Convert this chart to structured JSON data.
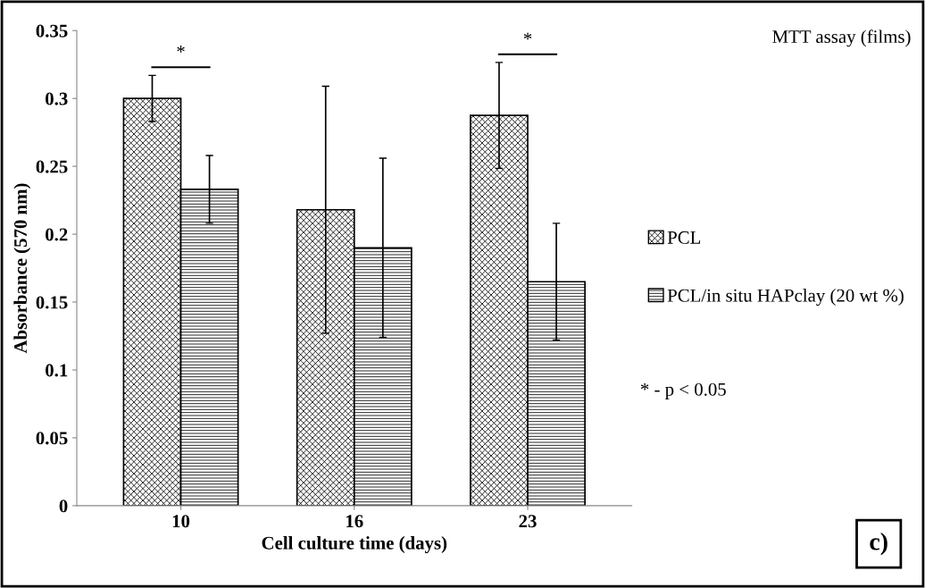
{
  "chart_data": {
    "type": "bar",
    "title": "MTT assay (films)",
    "xlabel": "Cell culture time (days)",
    "ylabel": "Absorbance (570 nm)",
    "categories": [
      "10",
      "16",
      "23"
    ],
    "series": [
      {
        "name": "PCL",
        "color": "#000000",
        "values": [
          0.3,
          0.218,
          0.2875
        ],
        "errors": [
          0.017,
          0.091,
          0.039
        ]
      },
      {
        "name": "PCL/in situ HAPclay (20 wt %)",
        "color": "#000000",
        "values": [
          0.233,
          0.19,
          0.165
        ],
        "errors": [
          0.025,
          0.066,
          0.043
        ]
      }
    ],
    "ylim": [
      0,
      0.35
    ],
    "yticks": [
      {
        "value": 0,
        "label": "0"
      },
      0.05,
      0.1,
      0.15,
      0.2,
      0.25,
      0.3,
      0.35
    ],
    "legend": "right",
    "grid": false,
    "annotations": [
      "*",
      "*",
      "* - p < 0.05",
      "c)"
    ]
  }
}
